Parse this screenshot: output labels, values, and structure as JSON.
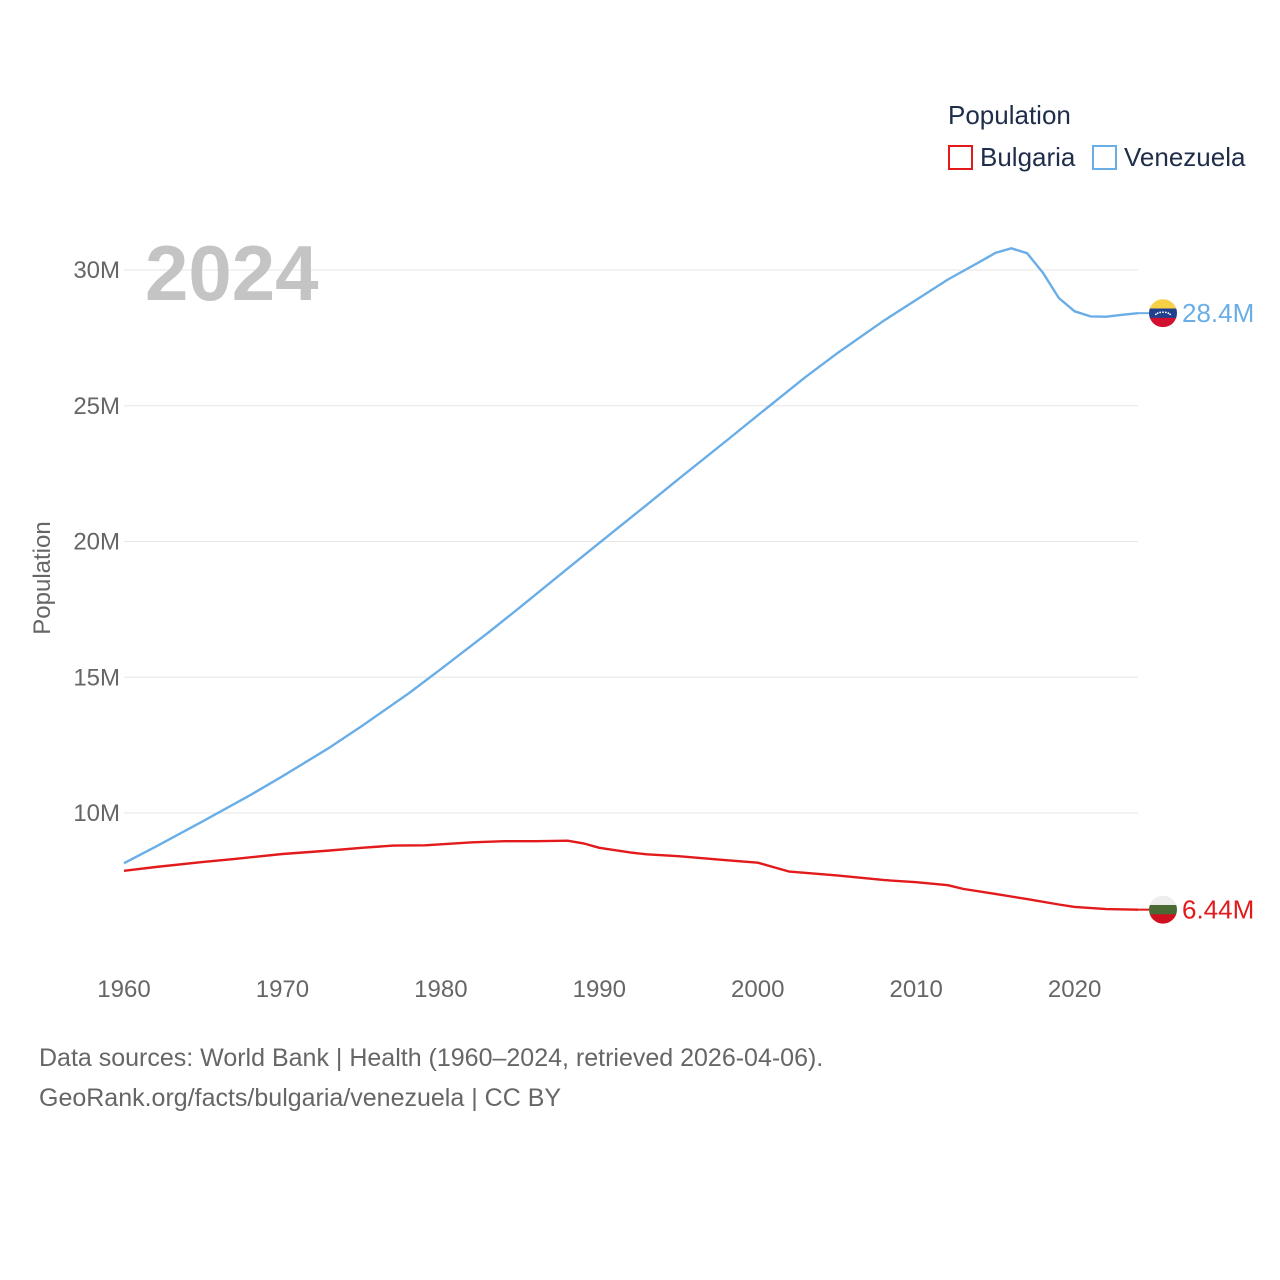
{
  "year_label": "2024",
  "legend": {
    "title": "Population",
    "items": [
      {
        "name": "Bulgaria",
        "color": "#e31a1c"
      },
      {
        "name": "Venezuela",
        "color": "#6aaee8"
      }
    ]
  },
  "footer": {
    "line1": "Data sources: World Bank | Health (1960–2024, retrieved 2026-04-06).",
    "line2": "GeoRank.org/facts/bulgaria/venezuela | CC BY"
  },
  "chart_data": {
    "type": "line",
    "title": "Population",
    "xlabel": "",
    "ylabel": "Population",
    "xlim": [
      1960,
      2024
    ],
    "ylim": [
      5000000,
      31000000
    ],
    "x_ticks": [
      1960,
      1970,
      1980,
      1990,
      2000,
      2010,
      2020
    ],
    "y_ticks": [
      {
        "value": 10000000,
        "label": "10M"
      },
      {
        "value": 15000000,
        "label": "15M"
      },
      {
        "value": 20000000,
        "label": "20M"
      },
      {
        "value": 25000000,
        "label": "25M"
      },
      {
        "value": 30000000,
        "label": "30M"
      }
    ],
    "grid": true,
    "series": [
      {
        "name": "Bulgaria",
        "color": "#e31a1c",
        "end_label": "6.44M",
        "flag": "bulgaria-flag-icon",
        "points": [
          [
            1960,
            7870000
          ],
          [
            1962,
            8010000
          ],
          [
            1965,
            8200000
          ],
          [
            1967,
            8310000
          ],
          [
            1970,
            8490000
          ],
          [
            1973,
            8620000
          ],
          [
            1975,
            8720000
          ],
          [
            1977,
            8800000
          ],
          [
            1979,
            8810000
          ],
          [
            1982,
            8920000
          ],
          [
            1984,
            8960000
          ],
          [
            1986,
            8960000
          ],
          [
            1988,
            8980000
          ],
          [
            1989,
            8880000
          ],
          [
            1990,
            8720000
          ],
          [
            1992,
            8540000
          ],
          [
            1993,
            8480000
          ],
          [
            1995,
            8410000
          ],
          [
            1998,
            8260000
          ],
          [
            2000,
            8170000
          ],
          [
            2002,
            7840000
          ],
          [
            2005,
            7700000
          ],
          [
            2008,
            7530000
          ],
          [
            2010,
            7450000
          ],
          [
            2012,
            7340000
          ],
          [
            2013,
            7200000
          ],
          [
            2015,
            7020000
          ],
          [
            2017,
            6830000
          ],
          [
            2019,
            6630000
          ],
          [
            2020,
            6540000
          ],
          [
            2022,
            6460000
          ],
          [
            2024,
            6440000
          ]
        ]
      },
      {
        "name": "Venezuela",
        "color": "#6aaee8",
        "end_label": "28.4M",
        "flag": "venezuela-flag-icon",
        "points": [
          [
            1960,
            8150000
          ],
          [
            1962,
            8760000
          ],
          [
            1965,
            9700000
          ],
          [
            1968,
            10670000
          ],
          [
            1970,
            11350000
          ],
          [
            1973,
            12420000
          ],
          [
            1975,
            13200000
          ],
          [
            1978,
            14420000
          ],
          [
            1980,
            15300000
          ],
          [
            1983,
            16650000
          ],
          [
            1985,
            17580000
          ],
          [
            1988,
            19000000
          ],
          [
            1990,
            19950000
          ],
          [
            1993,
            21350000
          ],
          [
            1995,
            22300000
          ],
          [
            1998,
            23700000
          ],
          [
            2000,
            24650000
          ],
          [
            2003,
            26050000
          ],
          [
            2005,
            26930000
          ],
          [
            2008,
            28150000
          ],
          [
            2010,
            28900000
          ],
          [
            2012,
            29650000
          ],
          [
            2014,
            30300000
          ],
          [
            2015,
            30630000
          ],
          [
            2016,
            30800000
          ],
          [
            2017,
            30620000
          ],
          [
            2018,
            29900000
          ],
          [
            2019,
            28970000
          ],
          [
            2020,
            28480000
          ],
          [
            2021,
            28290000
          ],
          [
            2022,
            28280000
          ],
          [
            2023,
            28350000
          ],
          [
            2024,
            28410000
          ]
        ]
      }
    ]
  }
}
